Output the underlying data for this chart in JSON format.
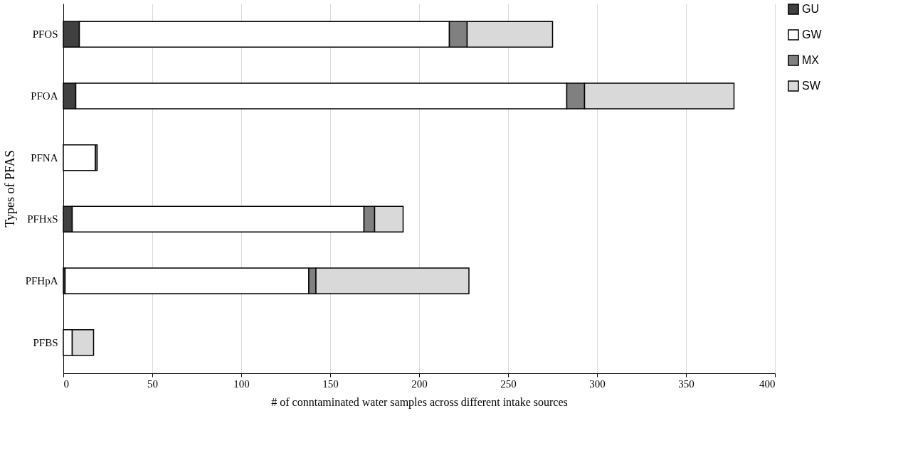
{
  "chart_data": {
    "type": "bar",
    "orientation": "horizontal",
    "stacked": true,
    "xlabel": "# of conntaminated water samples across different intake sources",
    "ylabel": "Types of PFAS",
    "categories": [
      "PFOS",
      "PFOA",
      "PFNA",
      "PFHxS",
      "PFHpA",
      "PFBS"
    ],
    "series": [
      {
        "name": "GU",
        "color": "#404040",
        "values": [
          9,
          7,
          0,
          5,
          1,
          0
        ]
      },
      {
        "name": "GW",
        "color": "#ffffff",
        "values": [
          208,
          276,
          18,
          164,
          137,
          5
        ]
      },
      {
        "name": "MX",
        "color": "#808080",
        "values": [
          10,
          10,
          1,
          6,
          4,
          0
        ]
      },
      {
        "name": "SW",
        "color": "#d9d9d9",
        "values": [
          48,
          84,
          0,
          16,
          86,
          12
        ]
      }
    ],
    "xlim": [
      0,
      400
    ],
    "xticks": [
      0,
      50,
      100,
      150,
      200,
      250,
      300,
      350,
      400
    ],
    "grid": "x",
    "legend": "right"
  }
}
